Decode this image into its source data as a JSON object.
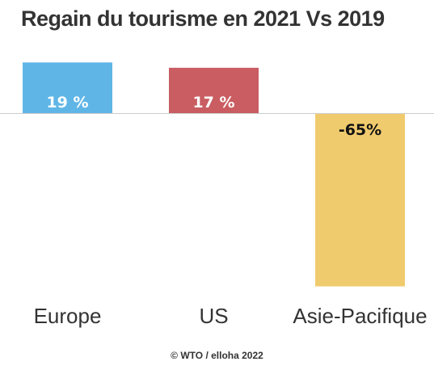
{
  "chart_data": {
    "type": "bar",
    "title": "Regain du tourisme en 2021 Vs 2019",
    "categories": [
      "Europe",
      "US",
      "Asie-Pacifique"
    ],
    "values": [
      19,
      17,
      -65
    ],
    "value_labels": [
      "19 %",
      "17 %",
      "-65%"
    ],
    "colors": [
      "#5fb5e6",
      "#c95d61",
      "#f0cb6e"
    ],
    "xlabel": "",
    "ylabel": "",
    "ylim": [
      -65,
      19
    ],
    "grid": false,
    "legend": "none"
  },
  "credit": "© WTO / elloha 2022"
}
